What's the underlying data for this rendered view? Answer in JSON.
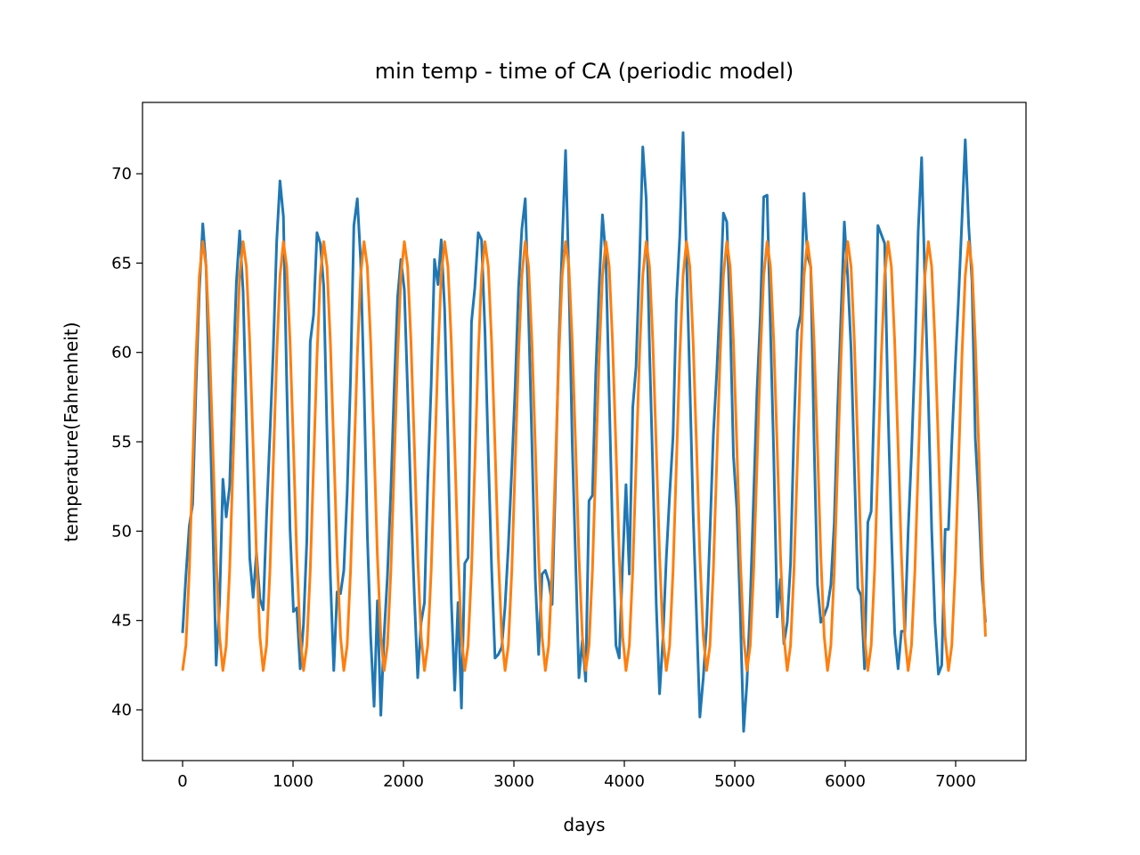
{
  "chart_data": {
    "type": "line",
    "title": "min temp - time of CA (periodic model)",
    "xlabel": "days",
    "ylabel": "temperature(Fahrenheit)",
    "x": [
      0,
      30,
      61,
      91,
      122,
      152,
      183,
      213,
      243,
      274,
      304,
      335,
      365,
      395,
      426,
      456,
      487,
      517,
      548,
      578,
      608,
      639,
      669,
      700,
      730,
      760,
      791,
      821,
      852,
      882,
      913,
      943,
      973,
      1004,
      1034,
      1065,
      1095,
      1125,
      1156,
      1186,
      1217,
      1247,
      1278,
      1308,
      1338,
      1369,
      1399,
      1430,
      1460,
      1490,
      1521,
      1551,
      1582,
      1612,
      1643,
      1673,
      1703,
      1734,
      1764,
      1795,
      1825,
      1855,
      1886,
      1916,
      1947,
      1977,
      2008,
      2038,
      2068,
      2099,
      2129,
      2160,
      2190,
      2220,
      2251,
      2281,
      2312,
      2342,
      2373,
      2403,
      2433,
      2464,
      2494,
      2525,
      2555,
      2585,
      2616,
      2646,
      2677,
      2707,
      2738,
      2768,
      2798,
      2829,
      2859,
      2890,
      2920,
      2950,
      2981,
      3011,
      3042,
      3072,
      3103,
      3133,
      3163,
      3194,
      3224,
      3255,
      3285,
      3315,
      3346,
      3376,
      3407,
      3437,
      3468,
      3498,
      3528,
      3559,
      3589,
      3620,
      3650,
      3680,
      3711,
      3741,
      3772,
      3802,
      3833,
      3863,
      3893,
      3924,
      3954,
      3985,
      4015,
      4045,
      4076,
      4106,
      4137,
      4167,
      4198,
      4228,
      4258,
      4289,
      4319,
      4350,
      4380,
      4410,
      4441,
      4471,
      4502,
      4532,
      4563,
      4593,
      4623,
      4654,
      4684,
      4715,
      4745,
      4775,
      4806,
      4836,
      4867,
      4897,
      4928,
      4958,
      4988,
      5019,
      5049,
      5080,
      5110,
      5140,
      5171,
      5201,
      5232,
      5262,
      5293,
      5323,
      5353,
      5384,
      5414,
      5445,
      5475,
      5505,
      5536,
      5566,
      5597,
      5627,
      5658,
      5688,
      5718,
      5749,
      5779,
      5810,
      5840,
      5870,
      5901,
      5931,
      5962,
      5992,
      6023,
      6053,
      6083,
      6114,
      6144,
      6175,
      6205,
      6235,
      6266,
      6296,
      6327,
      6357,
      6388,
      6418,
      6448,
      6479,
      6509,
      6540,
      6570,
      6600,
      6631,
      6661,
      6692,
      6722,
      6753,
      6783,
      6813,
      6844,
      6874,
      6905,
      6935,
      6965,
      6996,
      7026,
      7057,
      7087,
      7118,
      7148,
      7178,
      7209,
      7239,
      7270
    ],
    "series": [
      {
        "color": "#1f77b4",
        "values": [
          44.3,
          47.5,
          50.3,
          51.5,
          58.2,
          63.5,
          67.2,
          64.8,
          57.5,
          50.2,
          42.5,
          46.0,
          52.9,
          50.8,
          52.5,
          58.6,
          63.9,
          66.8,
          63.4,
          56.2,
          48.5,
          46.3,
          48.8,
          46.2,
          45.6,
          50.8,
          55.4,
          60.1,
          66.2,
          69.6,
          67.6,
          58.3,
          50.1,
          45.5,
          45.7,
          42.3,
          44.8,
          49.5,
          60.6,
          62.1,
          66.7,
          66.1,
          63.7,
          55.4,
          47.5,
          42.2,
          46.6,
          46.5,
          47.8,
          52.1,
          58.6,
          67.1,
          68.6,
          65.2,
          58.1,
          49.8,
          44.1,
          40.2,
          46.1,
          39.7,
          44.2,
          47.5,
          52.3,
          58.0,
          63.1,
          65.2,
          63.5,
          57.8,
          51.6,
          46.3,
          41.8,
          44.9,
          46.0,
          52.8,
          58.2,
          65.2,
          63.8,
          66.3,
          62.4,
          55.1,
          46.2,
          41.1,
          46.0,
          40.1,
          48.2,
          48.5,
          61.7,
          63.6,
          66.7,
          66.3,
          61.2,
          54.3,
          48.0,
          42.9,
          43.1,
          43.5,
          45.8,
          49.2,
          53.5,
          58.0,
          63.6,
          66.9,
          68.6,
          62.1,
          55.0,
          47.3,
          43.1,
          47.6,
          47.8,
          47.2,
          45.9,
          52.7,
          60.5,
          66.0,
          71.3,
          64.1,
          55.0,
          48.3,
          41.8,
          43.9,
          41.6,
          51.7,
          52.0,
          58.8,
          63.7,
          67.7,
          65.3,
          57.6,
          50.0,
          43.6,
          42.9,
          48.3,
          52.6,
          47.6,
          56.9,
          59.2,
          65.0,
          71.5,
          68.6,
          60.2,
          53.4,
          45.9,
          40.9,
          44.0,
          48.5,
          52.0,
          55.3,
          62.8,
          66.5,
          72.3,
          65.4,
          58.3,
          51.0,
          45.2,
          39.6,
          41.8,
          44.7,
          49.8,
          55.4,
          58.8,
          63.0,
          67.8,
          67.3,
          62.0,
          54.2,
          51.2,
          45.6,
          38.8,
          41.5,
          46.0,
          52.0,
          57.8,
          62.1,
          68.7,
          68.8,
          61.4,
          54.2,
          45.2,
          47.3,
          43.7,
          44.9,
          48.2,
          55.7,
          61.2,
          62.1,
          68.9,
          65.4,
          64.8,
          55.0,
          47.0,
          44.9,
          45.3,
          45.8,
          47.0,
          50.5,
          56.8,
          62.1,
          67.3,
          64.2,
          60.2,
          53.6,
          46.8,
          46.4,
          42.3,
          50.5,
          51.1,
          58.2,
          67.1,
          66.6,
          66.1,
          56.8,
          50.0,
          44.3,
          42.3,
          44.4,
          44.4,
          50.0,
          54.3,
          59.8,
          66.8,
          70.9,
          63.8,
          57.4,
          50.1,
          44.9,
          42.0,
          42.5,
          50.1,
          50.1,
          54.9,
          59.2,
          63.0,
          67.4,
          71.9,
          67.1,
          64.0,
          55.2,
          51.6,
          47.3,
          44.9
        ]
      },
      {
        "color": "#ff7f0e",
        "values": [
          42.2,
          43.6,
          47.8,
          53.7,
          59.8,
          64.3,
          66.2,
          64.8,
          60.6,
          54.7,
          48.6,
          44.1,
          42.2,
          43.6,
          47.8,
          53.7,
          59.8,
          64.3,
          66.2,
          64.8,
          60.6,
          54.7,
          48.6,
          44.1,
          42.2,
          43.6,
          47.8,
          53.7,
          59.8,
          64.3,
          66.2,
          64.8,
          60.6,
          54.7,
          48.6,
          44.1,
          42.2,
          43.6,
          47.8,
          53.7,
          59.8,
          64.3,
          66.2,
          64.8,
          60.6,
          54.7,
          48.6,
          44.1,
          42.2,
          43.6,
          47.8,
          53.7,
          59.8,
          64.3,
          66.2,
          64.8,
          60.6,
          54.7,
          48.6,
          44.1,
          42.2,
          43.6,
          47.8,
          53.7,
          59.8,
          64.3,
          66.2,
          64.8,
          60.6,
          54.7,
          48.6,
          44.1,
          42.2,
          43.6,
          47.8,
          53.7,
          59.8,
          64.3,
          66.2,
          64.8,
          60.6,
          54.7,
          48.6,
          44.1,
          42.2,
          43.6,
          47.8,
          53.7,
          59.8,
          64.3,
          66.2,
          64.8,
          60.6,
          54.7,
          48.6,
          44.1,
          42.2,
          43.6,
          47.8,
          53.7,
          59.8,
          64.3,
          66.2,
          64.8,
          60.6,
          54.7,
          48.6,
          44.1,
          42.2,
          43.6,
          47.8,
          53.7,
          59.8,
          64.3,
          66.2,
          64.8,
          60.6,
          54.7,
          48.6,
          44.1,
          42.2,
          43.6,
          47.8,
          53.7,
          59.8,
          64.3,
          66.2,
          64.8,
          60.6,
          54.7,
          48.6,
          44.1,
          42.2,
          43.6,
          47.8,
          53.7,
          59.8,
          64.3,
          66.2,
          64.8,
          60.6,
          54.7,
          48.6,
          44.1,
          42.2,
          43.6,
          47.8,
          53.7,
          59.8,
          64.3,
          66.2,
          64.8,
          60.6,
          54.7,
          48.6,
          44.1,
          42.2,
          43.6,
          47.8,
          53.7,
          59.8,
          64.3,
          66.2,
          64.8,
          60.6,
          54.7,
          48.6,
          44.1,
          42.2,
          43.6,
          47.8,
          53.7,
          59.8,
          64.3,
          66.2,
          64.8,
          60.6,
          54.7,
          48.6,
          44.1,
          42.2,
          43.6,
          47.8,
          53.7,
          59.8,
          64.3,
          66.2,
          64.8,
          60.6,
          54.7,
          48.6,
          44.1,
          42.2,
          43.6,
          47.8,
          53.7,
          59.8,
          64.3,
          66.2,
          64.8,
          60.6,
          54.7,
          48.6,
          44.1,
          42.2,
          43.6,
          47.8,
          53.7,
          59.8,
          64.3,
          66.2,
          64.8,
          60.6,
          54.7,
          48.6,
          44.1,
          42.2,
          43.6,
          47.8,
          53.7,
          59.8,
          64.3,
          66.2,
          64.8,
          60.6,
          54.7,
          48.6,
          44.1,
          42.2,
          43.6,
          47.8,
          53.7,
          59.8,
          64.3,
          66.2,
          64.8,
          60.6,
          54.7,
          48.6,
          44.1
        ]
      }
    ],
    "xlim": [
      -363,
      7637
    ],
    "xticks": [
      0,
      1000,
      2000,
      3000,
      4000,
      5000,
      6000,
      7000
    ],
    "ylim": [
      37.16,
      73.99
    ],
    "yticks": [
      40,
      45,
      50,
      55,
      60,
      65,
      70
    ],
    "grid": false
  }
}
